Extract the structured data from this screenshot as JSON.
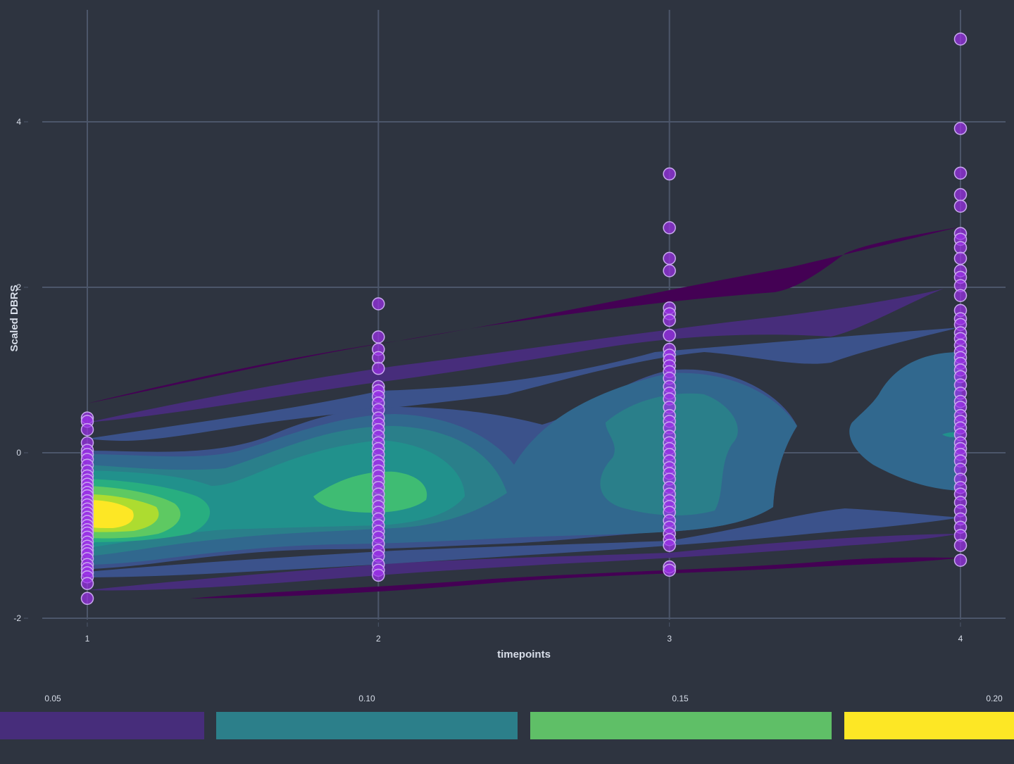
{
  "chart_data": {
    "type": "scatter",
    "overlay": "filled density contours",
    "xlabel": "timepoints",
    "ylabel": "Scaled DBRS",
    "x_ticks": [
      "1",
      "2",
      "3",
      "4"
    ],
    "y_ticks": [
      "-2",
      "0",
      "2",
      "4"
    ],
    "xlim": [
      0.9,
      4.15
    ],
    "ylim": [
      -2.3,
      5.4
    ],
    "grid": true,
    "colors": {
      "background": "#2e3440",
      "grid": "#4c566a",
      "point_fill": "#9b30e8",
      "point_stroke": "#c9a8f0",
      "density_palette": [
        "#440154",
        "#472d7b",
        "#3b528b",
        "#2c728e",
        "#21918c",
        "#28ae80",
        "#5ec962",
        "#addc30",
        "#fde725"
      ]
    },
    "legend": {
      "placement": "bottom",
      "labels": [
        "0.05",
        "0.10",
        "0.15",
        "0.20"
      ],
      "colors": [
        "#472d7b",
        "#2c7f8a",
        "#5fbf67",
        "#fde725"
      ]
    },
    "series": [
      {
        "x": 1,
        "values": [
          0.42,
          0.38,
          0.28,
          0.12,
          0.03,
          -0.02,
          -0.08,
          -0.15,
          -0.22,
          -0.28,
          -0.33,
          -0.38,
          -0.43,
          -0.48,
          -0.52,
          -0.58,
          -0.63,
          -0.68,
          -0.73,
          -0.78,
          -0.83,
          -0.88,
          -0.93,
          -0.97,
          -1.02,
          -1.08,
          -1.13,
          -1.18,
          -1.22,
          -1.28,
          -1.35,
          -1.4,
          -1.45,
          -1.5,
          -1.58,
          -1.76
        ]
      },
      {
        "x": 2,
        "values": [
          1.8,
          1.4,
          1.25,
          1.15,
          1.02,
          0.8,
          0.75,
          0.68,
          0.6,
          0.52,
          0.42,
          0.35,
          0.28,
          0.2,
          0.12,
          0.05,
          -0.02,
          -0.1,
          -0.15,
          -0.22,
          -0.28,
          -0.35,
          -0.42,
          -0.5,
          -0.58,
          -0.65,
          -0.72,
          -0.8,
          -0.88,
          -0.95,
          -1.02,
          -1.1,
          -1.18,
          -1.25,
          -1.35,
          -1.42,
          -1.48
        ]
      },
      {
        "x": 3,
        "values": [
          3.37,
          2.72,
          2.35,
          2.2,
          1.75,
          1.68,
          1.6,
          1.42,
          1.25,
          1.18,
          1.12,
          1.05,
          0.98,
          0.9,
          0.8,
          0.72,
          0.65,
          0.55,
          0.45,
          0.38,
          0.3,
          0.2,
          0.12,
          0.05,
          -0.02,
          -0.1,
          -0.18,
          -0.25,
          -0.32,
          -0.42,
          -0.5,
          -0.58,
          -0.65,
          -0.72,
          -0.82,
          -0.9,
          -0.98,
          -1.05,
          -1.12,
          -1.38,
          -1.42
        ]
      },
      {
        "x": 4,
        "values": [
          5.0,
          3.92,
          3.38,
          3.12,
          2.98,
          2.65,
          2.58,
          2.48,
          2.35,
          2.2,
          2.12,
          2.02,
          1.9,
          1.72,
          1.62,
          1.55,
          1.45,
          1.38,
          1.3,
          1.22,
          1.15,
          1.08,
          1.0,
          0.92,
          0.82,
          0.72,
          0.62,
          0.55,
          0.45,
          0.38,
          0.3,
          0.22,
          0.12,
          0.05,
          -0.02,
          -0.1,
          -0.2,
          -0.32,
          -0.42,
          -0.5,
          -0.6,
          -0.7,
          -0.8,
          -0.9,
          -1.0,
          -1.12,
          -1.3
        ]
      }
    ]
  }
}
